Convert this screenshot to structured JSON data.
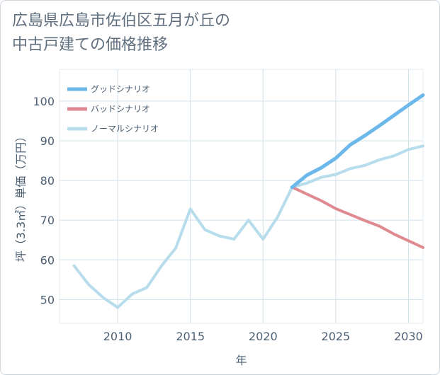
{
  "chart_data": {
    "type": "line",
    "title": "広島県広島市佐伯区五月が丘の中古戸建ての価格推移",
    "title_lines": [
      "広島県広島市佐伯区五月が丘の",
      "中古戸建ての価格推移"
    ],
    "xlabel": "年",
    "ylabel": "坪（3.3㎡）単価（万円）",
    "xlim": [
      2006,
      2031
    ],
    "ylim": [
      44,
      108
    ],
    "x_ticks": [
      2010,
      2015,
      2020,
      2025,
      2030
    ],
    "x_tick_labels": [
      "2010",
      "2015",
      "2020",
      "2025",
      "2030"
    ],
    "y_ticks": [
      50,
      60,
      70,
      80,
      90,
      100
    ],
    "y_tick_labels": [
      "50",
      "60",
      "70",
      "80",
      "90",
      "100"
    ],
    "grid": true,
    "legend_position": "top-left",
    "series": [
      {
        "name": "グッドシナリオ",
        "color": "#6cb8ea",
        "x": [
          2022,
          2023,
          2024,
          2025,
          2026,
          2027,
          2028,
          2029,
          2030,
          2031
        ],
        "values": [
          78.3,
          81.3,
          83.2,
          85.6,
          89.0,
          91.3,
          93.8,
          96.4,
          99.0,
          101.5
        ]
      },
      {
        "name": "バッドシナリオ",
        "color": "#df8a90",
        "x": [
          2022,
          2023,
          2024,
          2025,
          2026,
          2027,
          2028,
          2029,
          2030,
          2031
        ],
        "values": [
          78.3,
          76.6,
          74.9,
          72.9,
          71.4,
          69.9,
          68.5,
          66.5,
          64.8,
          63.1
        ]
      },
      {
        "name": "ノーマルシナリオ",
        "color": "#b7dcec",
        "x": [
          2007,
          2008,
          2009,
          2010,
          2011,
          2012,
          2013,
          2014,
          2015,
          2016,
          2017,
          2018,
          2019,
          2020,
          2021,
          2022,
          2023,
          2024,
          2025,
          2026,
          2027,
          2028,
          2029,
          2030,
          2031
        ],
        "values": [
          58.5,
          53.8,
          50.5,
          48.0,
          51.4,
          53.0,
          58.4,
          63.0,
          72.8,
          67.6,
          66.0,
          65.2,
          70.0,
          65.2,
          70.8,
          78.3,
          79.3,
          80.8,
          81.5,
          83.0,
          83.8,
          85.2,
          86.2,
          87.8,
          88.7
        ]
      }
    ]
  }
}
